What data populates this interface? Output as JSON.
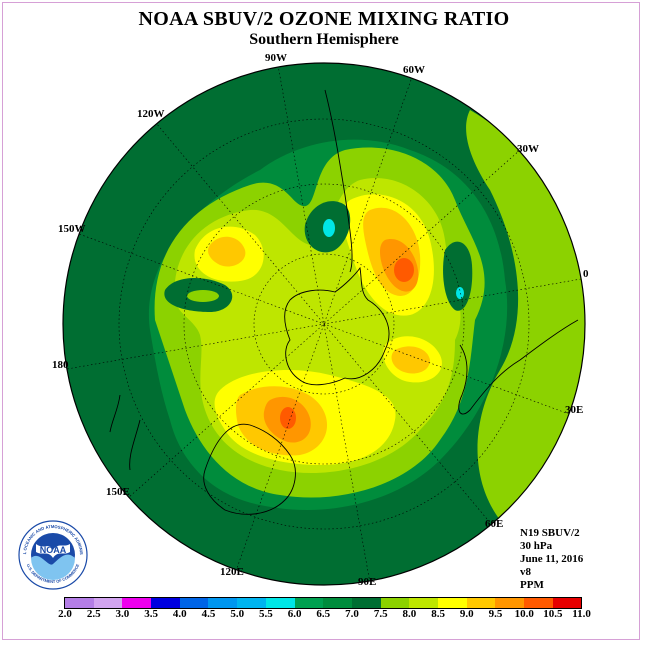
{
  "title": "NOAA SBUV/2 OZONE MIXING RATIO",
  "subtitle": "Southern Hemisphere",
  "longitude_labels": [
    "90W",
    "60W",
    "30W",
    "0",
    "30E",
    "60E",
    "90E",
    "120E",
    "150E",
    "180",
    "150W",
    "120W"
  ],
  "info": {
    "satellite": "N19 SBUV/2",
    "level": "30 hPa",
    "date": "June 11, 2016",
    "version": "v8",
    "units": "PPM"
  },
  "logo": {
    "text": "NOAA",
    "ring_text": "NATIONAL OCEANIC AND ATMOSPHERIC ADMINISTRATION",
    "ring_text_bottom": "U.S. DEPARTMENT OF COMMERCE"
  },
  "colorbar": {
    "ticks": [
      "2.0",
      "2.5",
      "3.0",
      "3.5",
      "4.0",
      "4.5",
      "5.0",
      "5.5",
      "6.0",
      "6.5",
      "7.0",
      "7.5",
      "8.0",
      "8.5",
      "9.0",
      "9.5",
      "10.0",
      "10.5",
      "11.0"
    ],
    "colors": [
      "#b47ee6",
      "#d2a4f0",
      "#ee00ee",
      "#0000e0",
      "#0064e6",
      "#0096f0",
      "#00b4f0",
      "#00e6e6",
      "#00a050",
      "#008c3c",
      "#006e32",
      "#8cd200",
      "#bee600",
      "#ffff00",
      "#ffc800",
      "#ff9600",
      "#ff5a00",
      "#e60000",
      "#8c5a3c"
    ]
  },
  "chart_data": {
    "type": "map",
    "projection": "polar stereographic (south pole)",
    "quantity": "ozone mixing ratio",
    "units": "PPM",
    "contour_levels": [
      2.0,
      2.5,
      3.0,
      3.5,
      4.0,
      4.5,
      5.0,
      5.5,
      6.0,
      6.5,
      7.0,
      7.5,
      8.0,
      8.5,
      9.0,
      9.5,
      10.0,
      10.5,
      11.0
    ],
    "maxima": [
      {
        "lon": "10W",
        "approx_value": 9.7
      },
      {
        "lon": "140E",
        "approx_value": 9.7
      },
      {
        "lon": "130W",
        "approx_value": 8.8
      },
      {
        "lon": "40E",
        "approx_value": 9.2
      }
    ],
    "minima": [
      {
        "lon": "70W",
        "approx_value": 5.5
      },
      {
        "lon": "5W",
        "approx_value": 5.5
      }
    ]
  }
}
